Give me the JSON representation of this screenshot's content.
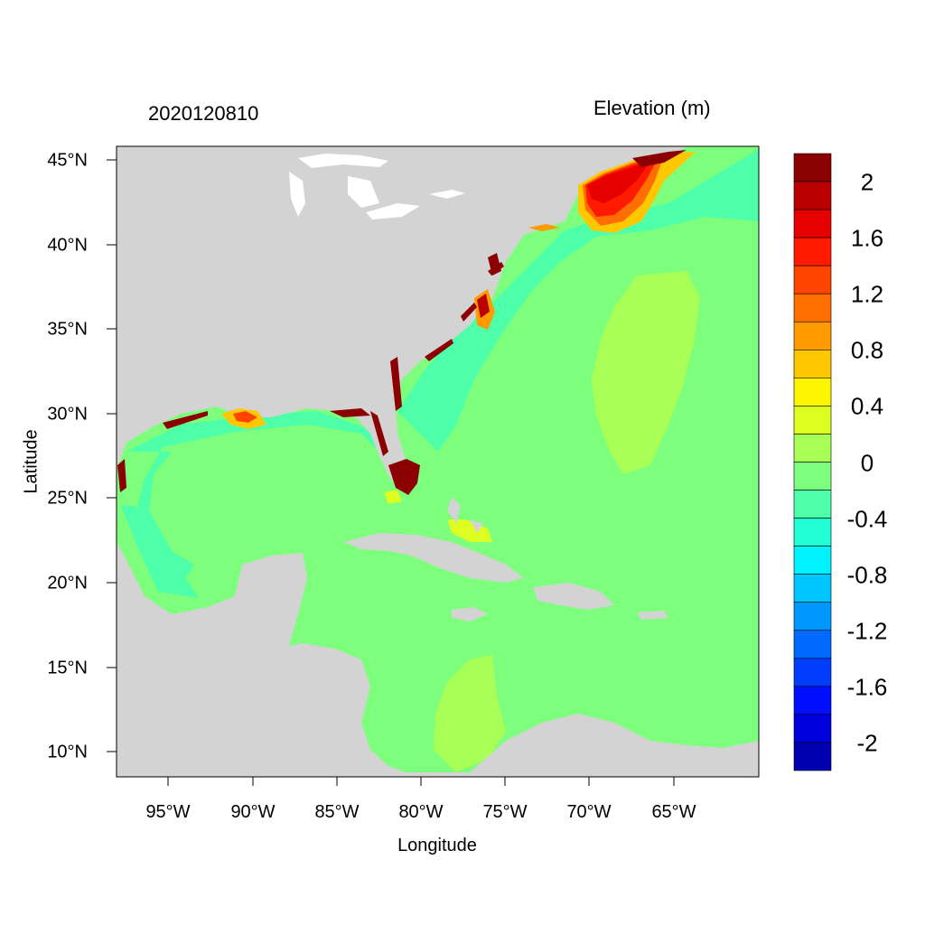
{
  "header": {
    "date": "2020120810",
    "variable": "Elevation (m)"
  },
  "axes": {
    "xlabel": "Longitude",
    "ylabel": "Latitude",
    "x_ticks": [
      "95°W",
      "90°W",
      "85°W",
      "80°W",
      "75°W",
      "70°W",
      "65°W"
    ],
    "y_ticks": [
      "45°N",
      "40°N",
      "35°N",
      "30°N",
      "25°N",
      "20°N",
      "15°N",
      "10°N"
    ]
  },
  "colorbar": {
    "labels": [
      "2",
      "1.6",
      "1.2",
      "0.8",
      "0.4",
      "0",
      "-0.4",
      "-0.8",
      "-1.2",
      "-1.6",
      "-2"
    ],
    "colors": [
      "#8b0000",
      "#bb0000",
      "#e60000",
      "#ff1a00",
      "#ff4400",
      "#ff6e00",
      "#ff9a00",
      "#ffc700",
      "#fff500",
      "#dcff21",
      "#a8ff55",
      "#7dff7d",
      "#4dffa8",
      "#21ffd5",
      "#00f2ff",
      "#00c6ff",
      "#0096ff",
      "#006aff",
      "#003dff",
      "#000dff",
      "#0000dd",
      "#0000b0"
    ]
  },
  "map": {
    "land_color": "#d3d3d3",
    "ocean_color": "#7dff7d",
    "lake_color": "#ffffff"
  }
}
